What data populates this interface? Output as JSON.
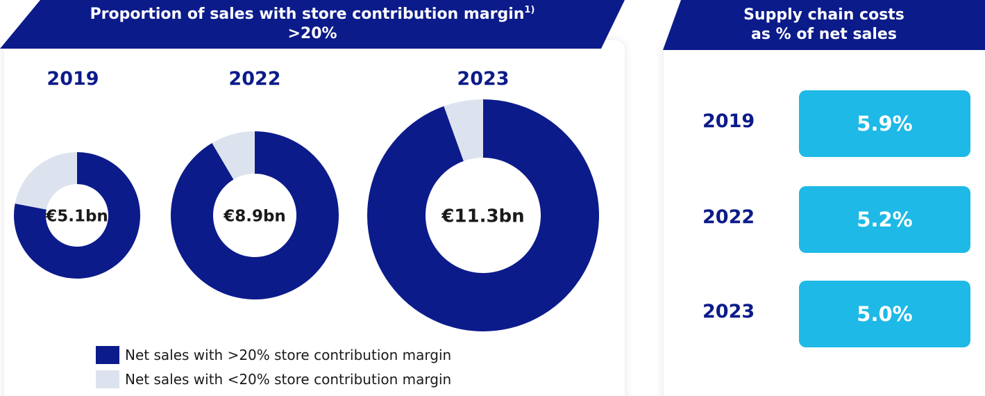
{
  "left_title_line1": "Proportion of sales with store contribution margin",
  "left_title_sup": "1)",
  "left_title_line2": ">20%",
  "right_title_line1": "Supply chain costs",
  "right_title_line2": "as % of net sales",
  "colors": {
    "high_margin": "#0c1b8a",
    "low_margin": "#dde3ee",
    "supply_box": "#1eb9e6"
  },
  "chart_data": [
    {
      "type": "pie",
      "variant": "donut",
      "series_names": [
        "Net sales with >20% store contribution margin",
        "Net sales with <20% store contribution margin"
      ],
      "items": [
        {
          "year": "2019",
          "total_label": "€5.1bn",
          "total_bn": 5.1,
          "share_high": 0.78,
          "share_low": 0.22
        },
        {
          "year": "2022",
          "total_label": "€8.9bn",
          "total_bn": 8.9,
          "share_high": 0.915,
          "share_low": 0.085
        },
        {
          "year": "2023",
          "total_label": "€11.3bn",
          "total_bn": 11.3,
          "share_high": 0.945,
          "share_low": 0.055
        }
      ],
      "legend": [
        {
          "label": "Net sales with >20% store contribution margin",
          "color": "#0c1b8a"
        },
        {
          "label": "Net sales with <20% store contribution margin",
          "color": "#dde3ee"
        }
      ]
    },
    {
      "type": "table",
      "rows": [
        {
          "year": "2019",
          "value": 5.9,
          "label": "5.9%"
        },
        {
          "year": "2022",
          "value": 5.2,
          "label": "5.2%"
        },
        {
          "year": "2023",
          "value": 5.0,
          "label": "5.0%"
        }
      ]
    }
  ]
}
